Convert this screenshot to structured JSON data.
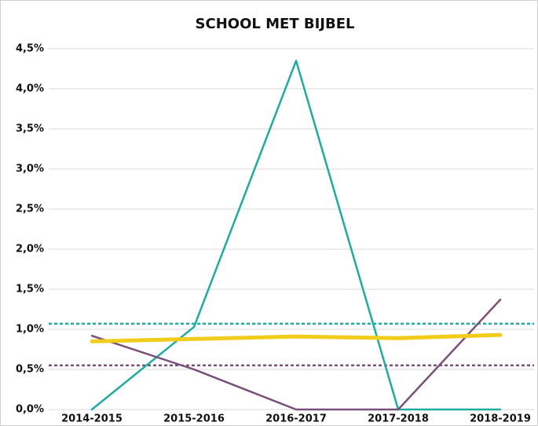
{
  "chart_data": {
    "type": "line",
    "title": "SCHOOL MET BIJBEL",
    "categories": [
      "2014-2015",
      "2015-2016",
      "2016-2017",
      "2017-2018",
      "2018-2019"
    ],
    "series": [
      {
        "color": "#1aada0",
        "values": [
          0,
          1.03,
          4.35,
          0,
          0
        ]
      },
      {
        "color": "#7a4f7a",
        "values": [
          0.92,
          0.5,
          0,
          0,
          1.37
        ]
      },
      {
        "color": "#f2cc1b",
        "values": [
          0.85,
          0.88,
          0.91,
          0.89,
          0.93
        ]
      }
    ],
    "reference_lines": [
      {
        "value": 1.07,
        "color": "#1aada0"
      },
      {
        "value": 0.55,
        "color": "#7a4f7a"
      }
    ],
    "ylim": [
      0,
      4.5
    ],
    "yticks": [
      {
        "value": 0,
        "label": "0,0%"
      },
      {
        "value": 0.5,
        "label": "0,5%"
      },
      {
        "value": 1,
        "label": "1,0%"
      },
      {
        "value": 1.5,
        "label": "1,5%"
      },
      {
        "value": 2,
        "label": "2,0%"
      },
      {
        "value": 2.5,
        "label": "2,5%"
      },
      {
        "value": 3,
        "label": "3,0%"
      },
      {
        "value": 3.5,
        "label": "3,5%"
      },
      {
        "value": 4,
        "label": "4,0%"
      },
      {
        "value": 4.5,
        "label": "4,5%"
      }
    ],
    "grid": true
  }
}
